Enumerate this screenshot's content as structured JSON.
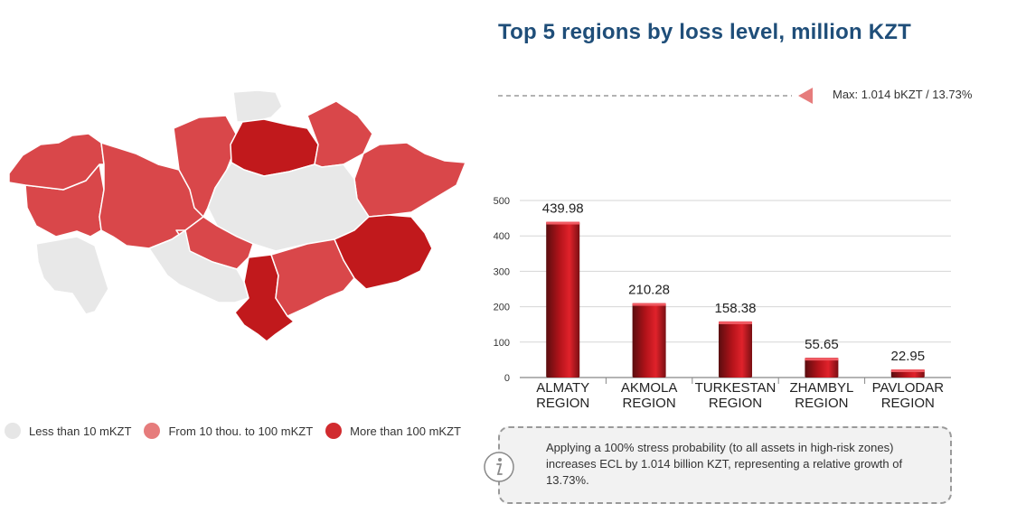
{
  "title": "Top 5 regions by loss level, million KZT",
  "max_label": "Max: 1.014 bKZT / 13.73%",
  "legend": [
    {
      "label": "Less than 10 mKZT",
      "color": "#e6e6e6"
    },
    {
      "label": "From 10 thou. to 100 mKZT",
      "color": "#e67c7c"
    },
    {
      "label": "More than 100 mKZT",
      "color": "#d12b2f"
    }
  ],
  "info_text": "Applying a 100% stress probability (to all assets in high-risk zones) increases ECL by 1.014 billion KZT, representing a relative growth of 13.73%.",
  "colors": {
    "low": "#e8e8e8",
    "mid": "#d9474a",
    "high": "#c1191c",
    "title": "#1f4e79"
  },
  "map_regions": [
    {
      "name": "west-kazakhstan",
      "level": "mid"
    },
    {
      "name": "aktobe",
      "level": "mid"
    },
    {
      "name": "kostanay",
      "level": "mid"
    },
    {
      "name": "north-kazakhstan",
      "level": "low"
    },
    {
      "name": "akmola",
      "level": "high"
    },
    {
      "name": "pavlodar",
      "level": "mid"
    },
    {
      "name": "east-kazakhstan",
      "level": "mid"
    },
    {
      "name": "atyrau",
      "level": "mid"
    },
    {
      "name": "mangystau",
      "level": "low"
    },
    {
      "name": "karaganda",
      "level": "low"
    },
    {
      "name": "kyzylorda",
      "level": "low"
    },
    {
      "name": "turkestan",
      "level": "high"
    },
    {
      "name": "zhambyl",
      "level": "mid"
    },
    {
      "name": "almaty",
      "level": "high"
    },
    {
      "name": "ulytau",
      "level": "mid"
    }
  ],
  "chart_data": {
    "type": "bar",
    "categories": [
      [
        "ALMATY",
        "REGION"
      ],
      [
        "AKMOLA",
        "REGION"
      ],
      [
        "TURKESTAN",
        "REGION"
      ],
      [
        "ZHAMBYL",
        "REGION"
      ],
      [
        "PAVLODAR",
        "REGION"
      ]
    ],
    "values": [
      439.98,
      210.28,
      158.38,
      55.65,
      22.95
    ],
    "value_labels": [
      "439.98",
      "210.28",
      "158.38",
      "55.65",
      "22.95"
    ],
    "yticks": [
      "0",
      "100",
      "200",
      "300",
      "400",
      "500"
    ],
    "ylim": [
      0,
      500
    ],
    "grid": true,
    "xlabel": "",
    "ylabel": ""
  }
}
